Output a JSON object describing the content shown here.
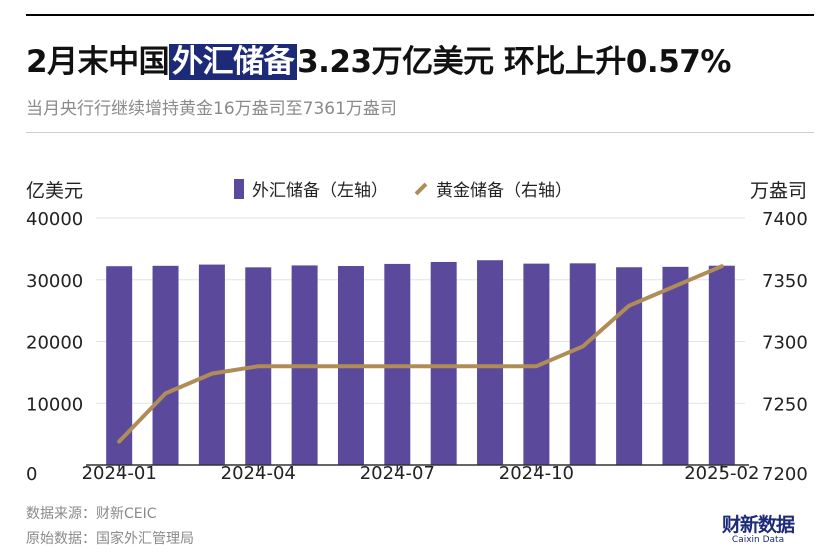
{
  "header": {
    "title_pre": "2月末中国",
    "title_highlight": "外汇储备",
    "title_post": "3.23万亿美元 环比上升0.57%",
    "subtitle": "当月央行行继续增持黄金16万盎司至7361万盎司"
  },
  "chart_data": {
    "type": "bar+line",
    "left_unit": "亿美元",
    "right_unit": "万盎司",
    "legend": [
      "外汇储备（左轴）",
      "黄金储备（右轴）"
    ],
    "x": [
      "2024-01",
      "2024-02",
      "2024-03",
      "2024-04",
      "2024-05",
      "2024-06",
      "2024-07",
      "2024-08",
      "2024-09",
      "2024-10",
      "2024-11",
      "2024-12",
      "2025-01",
      "2025-02"
    ],
    "x_tick_labels": [
      "2024-01",
      "2024-04",
      "2024-07",
      "2024-10",
      "2025-02"
    ],
    "left_axis": {
      "min": 0,
      "max": 40000,
      "ticks": [
        0,
        10000,
        20000,
        30000,
        40000
      ]
    },
    "right_axis": {
      "min": 7200,
      "max": 7400,
      "ticks": [
        7200,
        7250,
        7300,
        7350,
        7400
      ]
    },
    "series": [
      {
        "name": "外汇储备（左轴）",
        "type": "bar",
        "axis": "left",
        "values": [
          32193,
          32258,
          32457,
          32008,
          32320,
          32224,
          32564,
          32882,
          33164,
          32611,
          32659,
          32024,
          32090,
          32272
        ]
      },
      {
        "name": "黄金储备（右轴）",
        "type": "line",
        "axis": "right",
        "values": [
          7219,
          7258,
          7274,
          7280,
          7280,
          7280,
          7280,
          7280,
          7280,
          7280,
          7296,
          7329,
          7345,
          7361
        ]
      }
    ],
    "colors": {
      "bar": "#5b4a9c",
      "line": "#b08d57",
      "axis": "#333333",
      "grid": "#e3e3e3"
    }
  },
  "footer": {
    "source": "数据来源：财新CEIC",
    "original": "原始数据：国家外汇管理局"
  },
  "brand": {
    "name": "财新数据",
    "sub": "Caixin Data"
  }
}
